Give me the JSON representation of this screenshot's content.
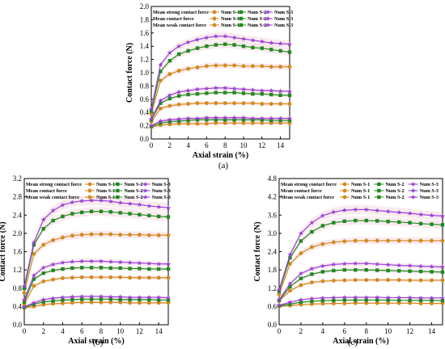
{
  "chart_data": [
    {
      "type": "line",
      "panel_label": "(a)",
      "xlabel": "Axial strain (%)",
      "ylabel": "Contact force (N)",
      "xlim": [
        0,
        15
      ],
      "ylim": [
        0,
        2.0
      ],
      "xticks": [
        "0",
        "2",
        "4",
        "6",
        "8",
        "10",
        "12",
        "14"
      ],
      "yticks": [
        "0.0",
        "0.2",
        "0.4",
        "0.6",
        "0.8",
        "1.0",
        "1.2",
        "1.4",
        "1.6",
        "1.8",
        "2.0"
      ],
      "legend": {
        "placement": "top-left",
        "rows": [
          "Mean strong contact force",
          "Mean contact force",
          "Mean weak contact force"
        ],
        "cols": [
          "Num S-1",
          "Num S-2",
          "Num S-3"
        ]
      },
      "x": [
        0,
        1,
        2,
        3,
        4,
        5,
        6,
        7,
        8,
        9,
        10,
        11,
        12,
        13,
        14,
        15
      ],
      "series": [
        {
          "group": "strong",
          "name": "Num S-1",
          "color": "#d4891c",
          "marker": "circle",
          "values": [
            0.38,
            0.88,
            0.98,
            1.03,
            1.06,
            1.08,
            1.1,
            1.11,
            1.11,
            1.11,
            1.1,
            1.1,
            1.1,
            1.09,
            1.09,
            1.09
          ]
        },
        {
          "group": "strong",
          "name": "Num S-2",
          "color": "#1f8a1f",
          "marker": "square",
          "values": [
            0.42,
            1.02,
            1.18,
            1.28,
            1.33,
            1.37,
            1.4,
            1.42,
            1.43,
            1.42,
            1.4,
            1.38,
            1.37,
            1.35,
            1.33,
            1.31
          ]
        },
        {
          "group": "strong",
          "name": "Num S-3",
          "color": "#9a3fd6",
          "marker": "star",
          "values": [
            0.45,
            1.12,
            1.3,
            1.4,
            1.46,
            1.5,
            1.53,
            1.55,
            1.55,
            1.53,
            1.51,
            1.49,
            1.47,
            1.45,
            1.44,
            1.43
          ]
        },
        {
          "group": "mean",
          "name": "Num S-1",
          "color": "#d4891c",
          "marker": "circle",
          "values": [
            0.26,
            0.46,
            0.5,
            0.52,
            0.53,
            0.54,
            0.54,
            0.54,
            0.54,
            0.54,
            0.54,
            0.54,
            0.53,
            0.53,
            0.53,
            0.53
          ]
        },
        {
          "group": "mean",
          "name": "Num S-2",
          "color": "#1f8a1f",
          "marker": "square",
          "values": [
            0.29,
            0.54,
            0.61,
            0.65,
            0.67,
            0.68,
            0.69,
            0.7,
            0.7,
            0.7,
            0.69,
            0.68,
            0.68,
            0.67,
            0.66,
            0.66
          ]
        },
        {
          "group": "mean",
          "name": "Num S-3",
          "color": "#9a3fd6",
          "marker": "star",
          "values": [
            0.3,
            0.58,
            0.66,
            0.71,
            0.73,
            0.75,
            0.76,
            0.77,
            0.77,
            0.76,
            0.75,
            0.74,
            0.73,
            0.73,
            0.72,
            0.72
          ]
        },
        {
          "group": "weak",
          "name": "Num S-1",
          "color": "#d4891c",
          "marker": "circle",
          "values": [
            0.18,
            0.21,
            0.22,
            0.23,
            0.23,
            0.23,
            0.23,
            0.24,
            0.24,
            0.24,
            0.24,
            0.24,
            0.24,
            0.24,
            0.24,
            0.24
          ]
        },
        {
          "group": "weak",
          "name": "Num S-2",
          "color": "#1f8a1f",
          "marker": "square",
          "values": [
            0.19,
            0.24,
            0.26,
            0.27,
            0.28,
            0.29,
            0.29,
            0.29,
            0.29,
            0.29,
            0.29,
            0.29,
            0.29,
            0.28,
            0.28,
            0.28
          ]
        },
        {
          "group": "weak",
          "name": "Num S-3",
          "color": "#9a3fd6",
          "marker": "star",
          "values": [
            0.2,
            0.27,
            0.29,
            0.3,
            0.31,
            0.31,
            0.32,
            0.32,
            0.32,
            0.32,
            0.32,
            0.31,
            0.31,
            0.31,
            0.31,
            0.31
          ]
        }
      ]
    },
    {
      "type": "line",
      "panel_label": "(b)",
      "xlabel": "Axial strain (%)",
      "ylabel": "Contact force (N)",
      "xlim": [
        0,
        15
      ],
      "ylim": [
        0,
        3.2
      ],
      "xticks": [
        "0",
        "2",
        "4",
        "6",
        "8",
        "10",
        "12",
        "14"
      ],
      "yticks": [
        "0.0",
        "0.4",
        "0.8",
        "1.2",
        "1.6",
        "2.0",
        "2.4",
        "2.8",
        "3.2"
      ],
      "legend": {
        "placement": "top-left",
        "rows": [
          "Mean strong contact force",
          "Mean contact force",
          "Mean weak contact force"
        ],
        "cols": [
          "Num S-1",
          "Num S-2",
          "Num S-3"
        ]
      },
      "x": [
        0,
        1,
        2,
        3,
        4,
        5,
        6,
        7,
        8,
        9,
        10,
        11,
        12,
        13,
        14,
        15
      ],
      "series": [
        {
          "group": "strong",
          "name": "Num S-1",
          "color": "#d4891c",
          "marker": "circle",
          "values": [
            0.7,
            1.55,
            1.75,
            1.85,
            1.91,
            1.95,
            1.97,
            1.98,
            1.98,
            1.98,
            1.97,
            1.97,
            1.97,
            1.96,
            1.96,
            1.96
          ]
        },
        {
          "group": "strong",
          "name": "Num S-2",
          "color": "#1f8a1f",
          "marker": "square",
          "values": [
            0.8,
            1.75,
            2.1,
            2.28,
            2.37,
            2.43,
            2.46,
            2.48,
            2.48,
            2.47,
            2.45,
            2.43,
            2.41,
            2.39,
            2.37,
            2.36
          ]
        },
        {
          "group": "strong",
          "name": "Num S-3",
          "color": "#9a3fd6",
          "marker": "star",
          "values": [
            0.85,
            1.8,
            2.3,
            2.5,
            2.62,
            2.68,
            2.71,
            2.72,
            2.72,
            2.7,
            2.67,
            2.65,
            2.63,
            2.6,
            2.58,
            2.56
          ]
        },
        {
          "group": "mean",
          "name": "Num S-1",
          "color": "#d4891c",
          "marker": "circle",
          "values": [
            0.45,
            0.85,
            0.95,
            0.99,
            1.02,
            1.03,
            1.04,
            1.04,
            1.04,
            1.04,
            1.04,
            1.03,
            1.03,
            1.03,
            1.03,
            1.03
          ]
        },
        {
          "group": "mean",
          "name": "Num S-2",
          "color": "#1f8a1f",
          "marker": "square",
          "values": [
            0.5,
            1.0,
            1.13,
            1.19,
            1.22,
            1.24,
            1.25,
            1.25,
            1.25,
            1.24,
            1.24,
            1.23,
            1.23,
            1.22,
            1.22,
            1.22
          ]
        },
        {
          "group": "mean",
          "name": "Num S-3",
          "color": "#9a3fd6",
          "marker": "star",
          "values": [
            0.55,
            1.08,
            1.25,
            1.32,
            1.36,
            1.38,
            1.39,
            1.39,
            1.39,
            1.38,
            1.37,
            1.36,
            1.35,
            1.34,
            1.33,
            1.33
          ]
        },
        {
          "group": "weak",
          "name": "Num S-1",
          "color": "#d4891c",
          "marker": "circle",
          "values": [
            0.37,
            0.4,
            0.44,
            0.46,
            0.47,
            0.48,
            0.49,
            0.49,
            0.49,
            0.49,
            0.49,
            0.48,
            0.48,
            0.48,
            0.48,
            0.48
          ]
        },
        {
          "group": "weak",
          "name": "Num S-2",
          "color": "#1f8a1f",
          "marker": "square",
          "values": [
            0.38,
            0.45,
            0.5,
            0.52,
            0.54,
            0.55,
            0.56,
            0.56,
            0.56,
            0.56,
            0.55,
            0.55,
            0.55,
            0.55,
            0.54,
            0.54
          ]
        },
        {
          "group": "weak",
          "name": "Num S-3",
          "color": "#9a3fd6",
          "marker": "star",
          "values": [
            0.39,
            0.48,
            0.55,
            0.58,
            0.6,
            0.61,
            0.62,
            0.62,
            0.62,
            0.61,
            0.61,
            0.6,
            0.6,
            0.6,
            0.6,
            0.59
          ]
        }
      ]
    },
    {
      "type": "line",
      "panel_label": "(c)",
      "xlabel": "Axial strain (%)",
      "ylabel": "Contact force (N)",
      "xlim": [
        0,
        15
      ],
      "ylim": [
        0,
        4.8
      ],
      "xticks": [
        "0",
        "2",
        "4",
        "6",
        "8",
        "10",
        "12",
        "14"
      ],
      "yticks": [
        "0.0",
        "0.6",
        "1.2",
        "1.8",
        "2.4",
        "3.0",
        "3.6",
        "4.2",
        "4.8"
      ],
      "legend": {
        "placement": "top-left",
        "rows": [
          "Mean strong contact force",
          "Mean contact force",
          "Mean weak contact force"
        ],
        "cols": [
          "Num S-1",
          "Num S-2",
          "Num S-3"
        ]
      },
      "x": [
        0,
        1,
        2,
        3,
        4,
        5,
        6,
        7,
        8,
        9,
        10,
        11,
        12,
        13,
        14,
        15
      ],
      "series": [
        {
          "group": "strong",
          "name": "Num S-1",
          "color": "#d4891c",
          "marker": "circle",
          "values": [
            1.0,
            2.0,
            2.35,
            2.55,
            2.65,
            2.71,
            2.74,
            2.76,
            2.76,
            2.76,
            2.76,
            2.76,
            2.76,
            2.76,
            2.76,
            2.76
          ]
        },
        {
          "group": "strong",
          "name": "Num S-2",
          "color": "#1f8a1f",
          "marker": "square",
          "values": [
            1.1,
            2.2,
            2.75,
            3.05,
            3.25,
            3.35,
            3.4,
            3.42,
            3.42,
            3.41,
            3.39,
            3.37,
            3.35,
            3.32,
            3.3,
            3.28
          ]
        },
        {
          "group": "strong",
          "name": "Num S-3",
          "color": "#9a3fd6",
          "marker": "star",
          "values": [
            1.15,
            2.3,
            3.0,
            3.35,
            3.58,
            3.7,
            3.76,
            3.78,
            3.78,
            3.75,
            3.72,
            3.69,
            3.66,
            3.62,
            3.59,
            3.57
          ]
        },
        {
          "group": "mean",
          "name": "Num S-1",
          "color": "#d4891c",
          "marker": "circle",
          "values": [
            0.78,
            1.12,
            1.3,
            1.39,
            1.43,
            1.45,
            1.46,
            1.47,
            1.47,
            1.47,
            1.47,
            1.47,
            1.46,
            1.46,
            1.46,
            1.46
          ]
        },
        {
          "group": "mean",
          "name": "Num S-2",
          "color": "#1f8a1f",
          "marker": "square",
          "values": [
            0.8,
            1.25,
            1.52,
            1.66,
            1.74,
            1.78,
            1.8,
            1.8,
            1.8,
            1.79,
            1.78,
            1.77,
            1.76,
            1.75,
            1.74,
            1.73
          ]
        },
        {
          "group": "mean",
          "name": "Num S-3",
          "color": "#9a3fd6",
          "marker": "star",
          "values": [
            0.82,
            1.35,
            1.68,
            1.84,
            1.93,
            1.98,
            2.0,
            2.01,
            2.01,
            1.99,
            1.97,
            1.95,
            1.94,
            1.92,
            1.91,
            1.9
          ]
        },
        {
          "group": "weak",
          "name": "Num S-1",
          "color": "#d4891c",
          "marker": "circle",
          "values": [
            0.6,
            0.63,
            0.66,
            0.68,
            0.69,
            0.7,
            0.7,
            0.71,
            0.71,
            0.71,
            0.71,
            0.71,
            0.71,
            0.7,
            0.7,
            0.7
          ]
        },
        {
          "group": "weak",
          "name": "Num S-2",
          "color": "#1f8a1f",
          "marker": "square",
          "values": [
            0.62,
            0.68,
            0.74,
            0.77,
            0.79,
            0.8,
            0.81,
            0.81,
            0.81,
            0.81,
            0.81,
            0.8,
            0.8,
            0.8,
            0.8,
            0.79
          ]
        },
        {
          "group": "weak",
          "name": "Num S-3",
          "color": "#9a3fd6",
          "marker": "star",
          "values": [
            0.64,
            0.74,
            0.82,
            0.86,
            0.88,
            0.89,
            0.9,
            0.9,
            0.9,
            0.9,
            0.89,
            0.89,
            0.89,
            0.88,
            0.88,
            0.88
          ]
        }
      ]
    }
  ]
}
